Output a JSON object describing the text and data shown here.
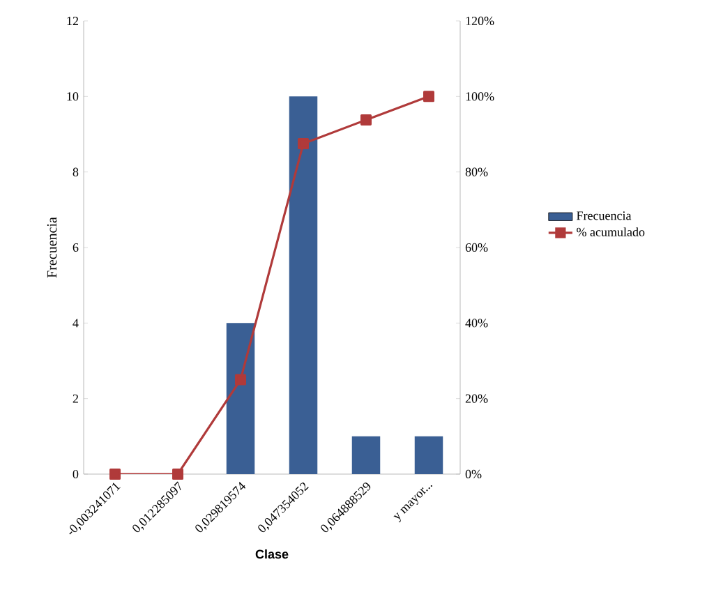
{
  "chart_data": {
    "type": "bar",
    "categories": [
      "-0,003241071",
      "0,012285097",
      "0,029819574",
      "0,047354052",
      "0,064888529",
      "y mayor..."
    ],
    "series": [
      {
        "name": "Frecuencia",
        "color": "#3a5f94",
        "values": [
          0,
          0,
          4,
          10,
          1,
          1
        ]
      },
      {
        "name": "% acumulado",
        "type": "line",
        "axis": "y2",
        "color": "#b03a3a",
        "values": [
          0,
          0,
          25,
          87.5,
          93.8,
          100
        ]
      }
    ],
    "xlabel": "Clase",
    "ylabel": "Frecuencia",
    "ylim": [
      0,
      12
    ],
    "yticks": [
      0,
      2,
      4,
      6,
      8,
      10,
      12
    ],
    "y2lim": [
      0,
      120
    ],
    "y2ticks": [
      {
        "value": 0,
        "label": "0%"
      },
      {
        "value": 20,
        "label": "20%"
      },
      {
        "value": 40,
        "label": "40%"
      },
      {
        "value": 60,
        "label": "60%"
      },
      {
        "value": 80,
        "label": "80%"
      },
      {
        "value": 100,
        "label": "100%"
      },
      {
        "value": 120,
        "label": "120%"
      }
    ],
    "legend": "right",
    "marker": "square",
    "line_style": "solid"
  }
}
